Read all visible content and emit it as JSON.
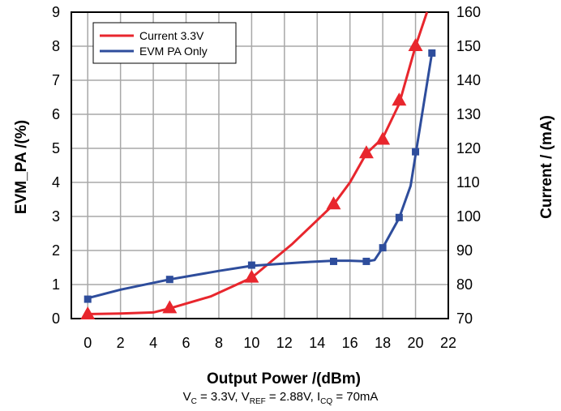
{
  "chart_data": {
    "type": "line",
    "xlabel": "Output Power /(dBm)",
    "ylabel": "EVM_PA /(%)",
    "y2label": "Current / (mA)",
    "xlim": [
      -1,
      22
    ],
    "ylim": [
      0,
      9
    ],
    "y2lim": [
      70,
      160
    ],
    "x_ticks": [
      0,
      2,
      4,
      6,
      8,
      10,
      12,
      14,
      16,
      18,
      20,
      22
    ],
    "y_ticks": [
      0,
      1,
      2,
      3,
      4,
      5,
      6,
      7,
      8,
      9
    ],
    "y2_ticks": [
      70,
      80,
      90,
      100,
      110,
      120,
      130,
      140,
      150,
      160
    ],
    "grid": true,
    "legend_position": "top-left",
    "series": [
      {
        "name": "Current 3.3V",
        "axis": "right",
        "color": "#e8262d",
        "marker": "triangle",
        "curve_x": [
          -0.2,
          2,
          4,
          5,
          7.5,
          10,
          12.5,
          15,
          16,
          17,
          18,
          19,
          20,
          20.7
        ],
        "curve_y": [
          71.3,
          71.5,
          71.8,
          73.0,
          76.5,
          82,
          92,
          103.5,
          110,
          118.5,
          123,
          133,
          150,
          160
        ],
        "marker_x": [
          0,
          5,
          10,
          15,
          17,
          18,
          19,
          20
        ],
        "marker_y": [
          71.2,
          73,
          82,
          103.5,
          118.5,
          122.5,
          134,
          150
        ]
      },
      {
        "name": "EVM PA Only",
        "axis": "left",
        "color": "#2e4d9c",
        "marker": "square",
        "curve_x": [
          0,
          2,
          5,
          8,
          10,
          13,
          15,
          16,
          17,
          17.5,
          18,
          19,
          19.7,
          20.3,
          20.7,
          21
        ],
        "curve_y": [
          0.6,
          0.85,
          1.15,
          1.4,
          1.55,
          1.65,
          1.7,
          1.7,
          1.68,
          1.72,
          2.08,
          2.95,
          3.9,
          5.7,
          6.9,
          7.8
        ],
        "marker_x": [
          0,
          5,
          10,
          15,
          17,
          18,
          19,
          20,
          21
        ],
        "marker_y": [
          0.57,
          1.15,
          1.57,
          1.68,
          1.68,
          2.08,
          2.97,
          4.9,
          7.8
        ]
      }
    ]
  },
  "caption": {
    "v_c": "V",
    "v_c_sub": "C",
    "v_c_val": " = 3.3V, V",
    "v_ref_sub": "REF",
    "v_ref_val": " = 2.88V, I",
    "i_cq_sub": "CQ",
    "i_cq_val": " = 70mA"
  }
}
